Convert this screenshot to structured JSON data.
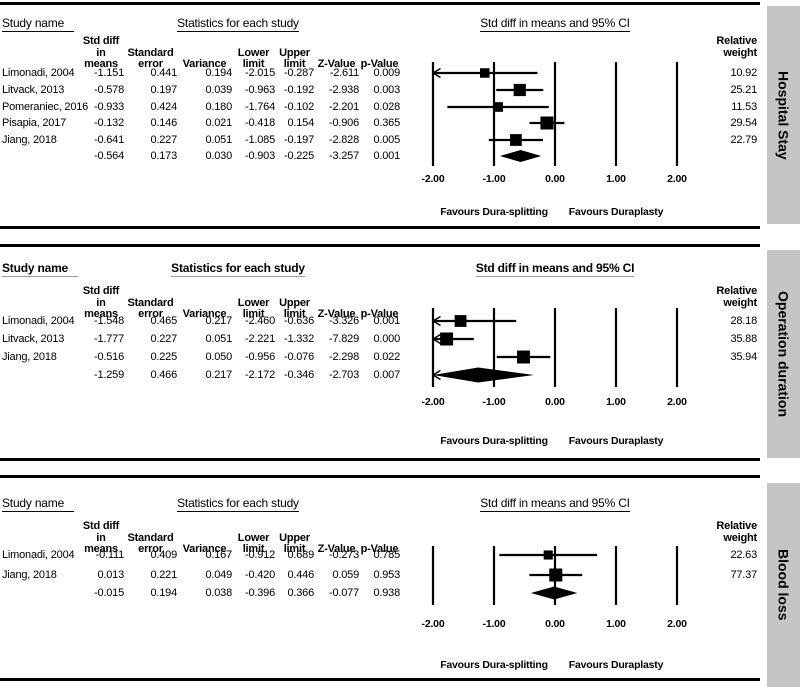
{
  "colors": {
    "ink": "#000000",
    "sidebar_gray": "#c5c5c5",
    "bold_header_underline": "#9c9c9c"
  },
  "labels": {
    "study_name": "Study name",
    "stats_header": "Statistics for each study",
    "plot_header": "Std diff in means and 95% CI",
    "weight_header": "Relative\nweight",
    "favours_left": "Favours Dura-splitting",
    "favours_right": "Favours Duraplasty",
    "columns": [
      "Std diff\nin means",
      "Standard\nerror",
      "Variance",
      "Lower\nlimit",
      "Upper\nlimit",
      "Z-Value",
      "p-Value"
    ]
  },
  "chart_data": [
    {
      "type": "forest",
      "outcome": "Hospital Stay",
      "effect_measure": "Std diff in means",
      "xlim": [
        -2,
        2
      ],
      "x_tick_labels": [
        "-2.00",
        "-1.00",
        "0.00",
        "1.00",
        "2.00"
      ],
      "studies": [
        {
          "study": "Limonadi, 2004",
          "std_diff": "-1.151",
          "std_err": "0.441",
          "variance": "0.194",
          "lower": "-2.015",
          "upper": "-0.287",
          "z": "-2.611",
          "p": "0.009",
          "weight": "10.92"
        },
        {
          "study": "Litvack, 2013",
          "std_diff": "-0.578",
          "std_err": "0.197",
          "variance": "0.039",
          "lower": "-0.963",
          "upper": "-0.192",
          "z": "-2.938",
          "p": "0.003",
          "weight": "25.21"
        },
        {
          "study": "Pomeraniec, 2016",
          "std_diff": "-0.933",
          "std_err": "0.424",
          "variance": "0.180",
          "lower": "-1.764",
          "upper": "-0.102",
          "z": "-2.201",
          "p": "0.028",
          "weight": "11.53"
        },
        {
          "study": "Pisapia, 2017",
          "std_diff": "-0.132",
          "std_err": "0.146",
          "variance": "0.021",
          "lower": "-0.418",
          "upper": "0.154",
          "z": "-0.906",
          "p": "0.365",
          "weight": "29.54"
        },
        {
          "study": "Jiang, 2018",
          "std_diff": "-0.641",
          "std_err": "0.227",
          "variance": "0.051",
          "lower": "-1.085",
          "upper": "-0.197",
          "z": "-2.828",
          "p": "0.005",
          "weight": "22.79"
        }
      ],
      "summary": {
        "std_diff": "-0.564",
        "std_err": "0.173",
        "variance": "0.030",
        "lower": "-0.903",
        "upper": "-0.225",
        "z": "-3.257",
        "p": "0.001"
      }
    },
    {
      "type": "forest",
      "outcome": "Operation duration",
      "effect_measure": "Std diff in means",
      "xlim": [
        -2,
        2
      ],
      "x_tick_labels": [
        "-2.00",
        "-1.00",
        "0.00",
        "1.00",
        "2.00"
      ],
      "studies": [
        {
          "study": "Limonadi, 2004",
          "std_diff": "-1.548",
          "std_err": "0.465",
          "variance": "0.217",
          "lower": "-2.460",
          "upper": "-0.636",
          "z": "-3.326",
          "p": "0.001",
          "weight": "28.18"
        },
        {
          "study": "Litvack, 2013",
          "std_diff": "-1.777",
          "std_err": "0.227",
          "variance": "0.051",
          "lower": "-2.221",
          "upper": "-1.332",
          "z": "-7.829",
          "p": "0.000",
          "weight": "35.88"
        },
        {
          "study": "Jiang, 2018",
          "std_diff": "-0.516",
          "std_err": "0.225",
          "variance": "0.050",
          "lower": "-0.956",
          "upper": "-0.076",
          "z": "-2.298",
          "p": "0.022",
          "weight": "35.94"
        }
      ],
      "summary": {
        "std_diff": "-1.259",
        "std_err": "0.466",
        "variance": "0.217",
        "lower": "-2.172",
        "upper": "-0.346",
        "z": "-2.703",
        "p": "0.007"
      }
    },
    {
      "type": "forest",
      "outcome": "Blood loss",
      "effect_measure": "Std diff in means",
      "xlim": [
        -2,
        2
      ],
      "x_tick_labels": [
        "-2.00",
        "-1.00",
        "0.00",
        "1.00",
        "2.00"
      ],
      "studies": [
        {
          "study": "Limonadi, 2004",
          "std_diff": "-0.111",
          "std_err": "0.409",
          "variance": "0.167",
          "lower": "-0.912",
          "upper": "0.689",
          "z": "-0.273",
          "p": "0.785",
          "weight": "22.63"
        },
        {
          "study": "Jiang, 2018",
          "std_diff": "0.013",
          "std_err": "0.221",
          "variance": "0.049",
          "lower": "-0.420",
          "upper": "0.446",
          "z": "0.059",
          "p": "0.953",
          "weight": "77.37"
        }
      ],
      "summary": {
        "std_diff": "-0.015",
        "std_err": "0.194",
        "variance": "0.038",
        "lower": "-0.396",
        "upper": "0.366",
        "z": "-0.077",
        "p": "0.938"
      }
    }
  ]
}
